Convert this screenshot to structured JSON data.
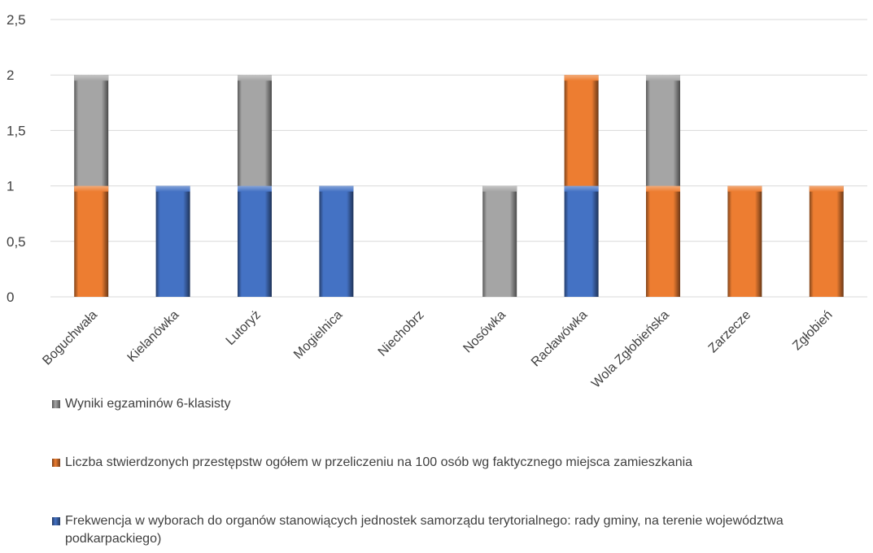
{
  "chart_data": {
    "type": "bar",
    "stacked": true,
    "categories": [
      "Boguchwała",
      "Kielanówka",
      "Lutoryż",
      "Mogielnica",
      "Niechobrz",
      "Nosówka",
      "Racławówka",
      "Wola Zgłobieńska",
      "Zarzecze",
      "Zgłobień"
    ],
    "series": [
      {
        "name": "Frekwencja w wyborach do organów stanowiących jednostek samorządu terytorialnego: rady gminy, na terenie województwa podkarpackiego)",
        "color": "#4472C4",
        "values": [
          0,
          1,
          1,
          1,
          0,
          0,
          1,
          0,
          0,
          0
        ]
      },
      {
        "name": "Liczba stwierdzonych przestępstw ogółem w przeliczeniu na 100 osób wg faktycznego miejsca zamieszkania",
        "color": "#ED7D31",
        "values": [
          1,
          0,
          0,
          0,
          0,
          0,
          1,
          1,
          1,
          1
        ]
      },
      {
        "name": "Wyniki egzaminów 6-klasisty",
        "color": "#A5A5A5",
        "values": [
          1,
          0,
          1,
          0,
          0,
          1,
          0,
          1,
          0,
          0
        ]
      }
    ],
    "yticks": [
      "0",
      "0,5",
      "1",
      "1,5",
      "2",
      "2,5"
    ],
    "ylim": [
      0,
      2.5
    ],
    "grid": true,
    "legend_position": "bottom",
    "legend_order": [
      2,
      1,
      0
    ]
  }
}
